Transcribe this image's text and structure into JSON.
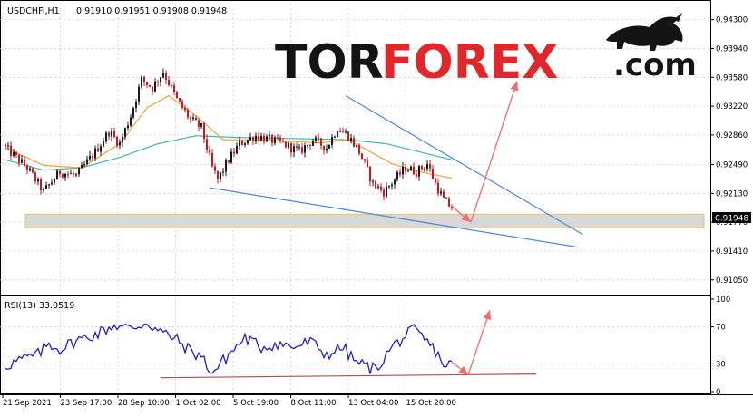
{
  "header": {
    "symbol": "USDCHFi,H1",
    "ohlc": "0.91910 0.91951 0.91908 0.91948"
  },
  "logo": {
    "part1": "TOR",
    "part2": "FOREX",
    "part3": ".com"
  },
  "colors": {
    "bull": "#1a1a1a",
    "bear": "#d4141c",
    "ma_fast": "#e8a33a",
    "ma_slow": "#3fb9a8",
    "trendline": "#4a86d8",
    "arrow": "#f26a6a",
    "rsi_line": "#1c1ccf",
    "rsi_support": "#b84a4a",
    "zone_fill": "#d8d8d8",
    "zone_border": "#e6c75a"
  },
  "chart_data": [
    {
      "type": "candlestick",
      "name": "main",
      "price_axis": {
        "ticks": [
          "0.94300",
          "0.93940",
          "0.93580",
          "0.93220",
          "0.92860",
          "0.92490",
          "0.92130",
          "0.91770",
          "0.91410",
          "0.91050"
        ],
        "min": 0.909,
        "max": 0.945,
        "current": "0.91948"
      },
      "time_axis": {
        "labels": [
          "21 Sep 2021",
          "23 Sep 17:00",
          "28 Sep 10:00",
          "1 Oct 02:00",
          "5 Oct 19:00",
          "8 Oct 11:00",
          "13 Oct 04:00",
          "15 Oct 20:00"
        ]
      },
      "bar_count": 165,
      "price_anchors": [
        [
          0,
          0.927
        ],
        [
          8,
          0.9245
        ],
        [
          14,
          0.9215
        ],
        [
          20,
          0.924
        ],
        [
          26,
          0.9235
        ],
        [
          33,
          0.9265
        ],
        [
          38,
          0.929
        ],
        [
          42,
          0.9275
        ],
        [
          46,
          0.931
        ],
        [
          50,
          0.9355
        ],
        [
          54,
          0.9345
        ],
        [
          58,
          0.9365
        ],
        [
          63,
          0.933
        ],
        [
          68,
          0.9305
        ],
        [
          72,
          0.9295
        ],
        [
          76,
          0.9245
        ],
        [
          78,
          0.923
        ],
        [
          82,
          0.9255
        ],
        [
          86,
          0.9275
        ],
        [
          92,
          0.9285
        ],
        [
          97,
          0.928
        ],
        [
          102,
          0.9275
        ],
        [
          108,
          0.9265
        ],
        [
          113,
          0.928
        ],
        [
          118,
          0.927
        ],
        [
          122,
          0.9295
        ],
        [
          126,
          0.9285
        ],
        [
          130,
          0.9265
        ],
        [
          135,
          0.9225
        ],
        [
          139,
          0.9215
        ],
        [
          143,
          0.923
        ],
        [
          147,
          0.9245
        ],
        [
          151,
          0.924
        ],
        [
          155,
          0.925
        ],
        [
          158,
          0.9225
        ],
        [
          161,
          0.9205
        ],
        [
          164,
          0.91948
        ]
      ],
      "ma_fast_anchors": [
        [
          0,
          0.927
        ],
        [
          14,
          0.9248
        ],
        [
          28,
          0.9245
        ],
        [
          42,
          0.9275
        ],
        [
          52,
          0.932
        ],
        [
          60,
          0.9335
        ],
        [
          70,
          0.931
        ],
        [
          80,
          0.928
        ],
        [
          92,
          0.928
        ],
        [
          104,
          0.9278
        ],
        [
          116,
          0.9276
        ],
        [
          126,
          0.928
        ],
        [
          134,
          0.9265
        ],
        [
          142,
          0.925
        ],
        [
          152,
          0.924
        ],
        [
          164,
          0.9232
        ]
      ],
      "ma_slow_anchors": [
        [
          0,
          0.9255
        ],
        [
          14,
          0.9242
        ],
        [
          28,
          0.9245
        ],
        [
          42,
          0.9258
        ],
        [
          56,
          0.9275
        ],
        [
          70,
          0.9285
        ],
        [
          84,
          0.9283
        ],
        [
          98,
          0.9282
        ],
        [
          112,
          0.9281
        ],
        [
          126,
          0.928
        ],
        [
          140,
          0.9275
        ],
        [
          152,
          0.9265
        ],
        [
          164,
          0.9255
        ]
      ],
      "support_zone": {
        "from": 0.917,
        "to": 0.9187
      },
      "trendlines": [
        {
          "name": "lower-wedge-line",
          "p1": [
            75,
            0.922
          ],
          "p2": [
            210,
            0.9146
          ]
        },
        {
          "name": "upper-wedge-line",
          "p1": [
            125,
            0.9335
          ],
          "p2": [
            212,
            0.9162
          ]
        }
      ],
      "forecast_arrows": [
        {
          "name": "down-arrow",
          "p1": [
            164,
            0.9197
          ],
          "p2": [
            171,
            0.9177
          ]
        },
        {
          "name": "up-arrow",
          "p1": [
            171,
            0.9177
          ],
          "p2": [
            188,
            0.9353
          ]
        }
      ]
    },
    {
      "type": "line",
      "name": "RSI",
      "label": "RSI(13) 33.0519",
      "value": 33.0519,
      "ylim": [
        0,
        100
      ],
      "ticks": [
        "100",
        "70",
        "30",
        "0"
      ],
      "anchors": [
        [
          0,
          28
        ],
        [
          6,
          35
        ],
        [
          12,
          40
        ],
        [
          16,
          52
        ],
        [
          20,
          46
        ],
        [
          26,
          55
        ],
        [
          34,
          63
        ],
        [
          40,
          72
        ],
        [
          46,
          68
        ],
        [
          52,
          75
        ],
        [
          56,
          66
        ],
        [
          62,
          58
        ],
        [
          68,
          44
        ],
        [
          72,
          38
        ],
        [
          76,
          20
        ],
        [
          82,
          40
        ],
        [
          88,
          58
        ],
        [
          94,
          48
        ],
        [
          100,
          52
        ],
        [
          106,
          48
        ],
        [
          112,
          54
        ],
        [
          118,
          40
        ],
        [
          124,
          48
        ],
        [
          128,
          34
        ],
        [
          132,
          28
        ],
        [
          136,
          24
        ],
        [
          142,
          48
        ],
        [
          146,
          58
        ],
        [
          150,
          66
        ],
        [
          154,
          56
        ],
        [
          158,
          44
        ],
        [
          162,
          26
        ],
        [
          164,
          33
        ]
      ],
      "support_line": {
        "p1": [
          57,
          15
        ],
        "p2": [
          195,
          19
        ]
      },
      "forecast_arrows": [
        {
          "name": "rsi-down-arrow",
          "p1": [
            164,
            32
          ],
          "p2": [
            170,
            18
          ]
        },
        {
          "name": "rsi-up-arrow",
          "p1": [
            170,
            18
          ],
          "p2": [
            178,
            88
          ]
        }
      ]
    }
  ]
}
